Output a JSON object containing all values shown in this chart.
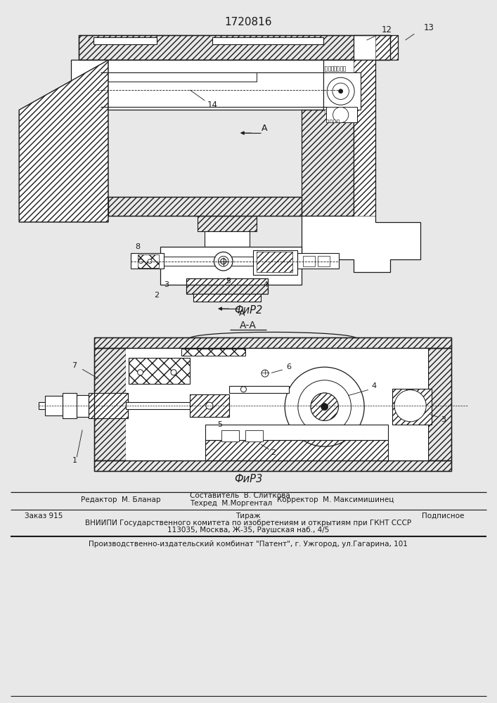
{
  "title_number": "1720816",
  "fig2_label": "ФиР2",
  "fig3_label": "ФиР3",
  "section_label": "А-А",
  "editor_label": "Редактор  М. Бланар",
  "composer_label": "Составитель  В. Слиткова",
  "techred_label": "Техред  М.Моргентал",
  "corrector_label": "Корректор  М. Максимишинец",
  "order_label": "Заказ 915",
  "tirazh_label": "Тираж",
  "podpisnoe_label": "Подписное",
  "vniiipi_line1": "ВНИИПИ Государственного комитета по изобретениям и открытиям при ГКНТ СССР",
  "vniiipi_line2": "113035, Москва, Ж-35, Раушская наб., 4/5",
  "factory_line": "Производственно-издательский комбинат \"Патент\", г. Ужгород, ул.Гагарина, 101",
  "bg_color": "#e8e8e8",
  "lc": "#1a1a1a"
}
